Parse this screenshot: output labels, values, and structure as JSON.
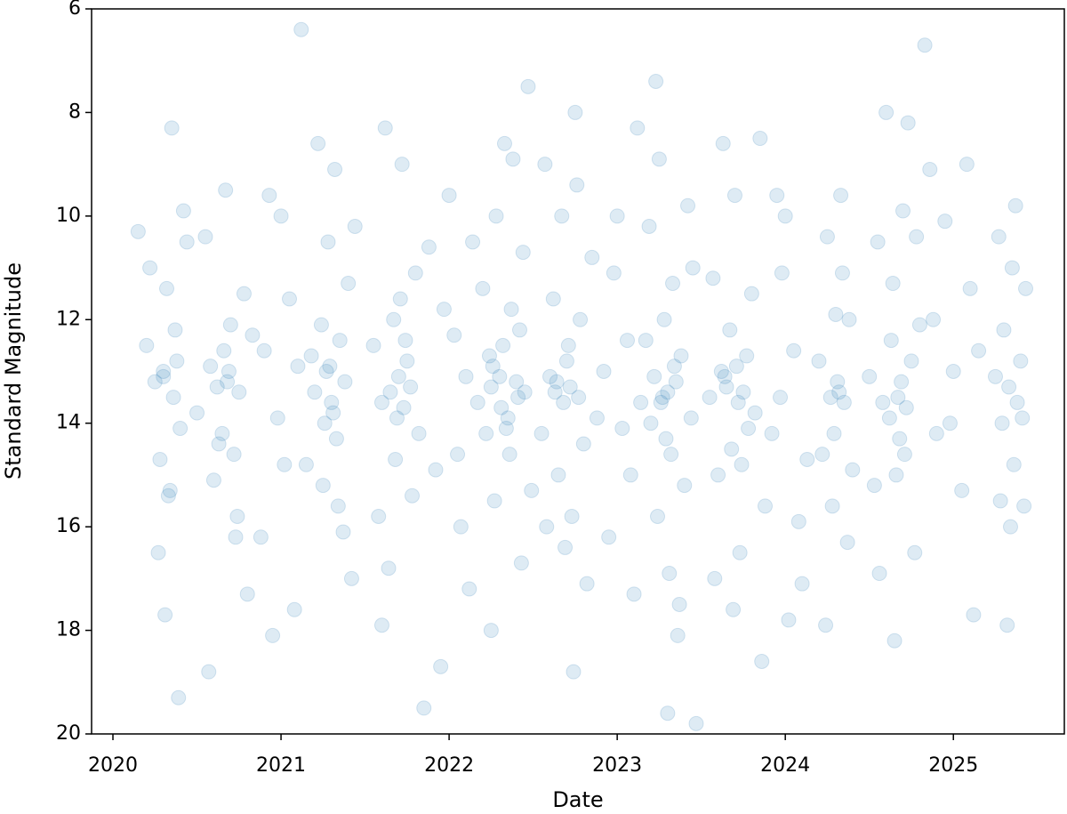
{
  "chart_data": {
    "type": "scatter",
    "x_label": "Date",
    "y_label": "Standard Magnitude",
    "color": "#1f77b4",
    "alpha": 0.15,
    "xlim": [
      2019.873,
      2025.66
    ],
    "xticks": [
      2020,
      2021,
      2022,
      2023,
      2024,
      2025
    ],
    "ylim": [
      20,
      6
    ],
    "yticks": [
      6,
      8,
      10,
      12,
      14,
      16,
      18,
      20
    ],
    "x": [
      2020.15,
      2020.2,
      2020.25,
      2020.28,
      2020.3,
      2020.32,
      2020.33,
      2020.35,
      2020.36,
      2020.38,
      2020.4,
      2020.42,
      2020.3,
      2020.34,
      2020.37,
      2020.27,
      2020.31,
      2020.39,
      2020.44,
      2020.22,
      2020.5,
      2020.55,
      2020.58,
      2020.6,
      2020.62,
      2020.65,
      2020.67,
      2020.68,
      2020.7,
      2020.72,
      2020.73,
      2020.75,
      2020.78,
      2020.8,
      2020.63,
      2020.66,
      2020.69,
      2020.74,
      2020.57,
      2020.83,
      2020.9,
      2020.95,
      2021.0,
      2021.02,
      2021.05,
      2020.88,
      2020.98,
      2021.08,
      2021.1,
      2020.93,
      2021.15,
      2021.18,
      2021.2,
      2021.22,
      2021.24,
      2021.25,
      2021.27,
      2021.28,
      2021.3,
      2021.32,
      2021.33,
      2021.35,
      2021.37,
      2021.38,
      2021.4,
      2021.42,
      2021.26,
      2021.29,
      2021.31,
      2021.34,
      2021.12,
      2021.44,
      2021.55,
      2021.58,
      2021.6,
      2021.62,
      2021.65,
      2021.67,
      2021.68,
      2021.7,
      2021.72,
      2021.73,
      2021.75,
      2021.78,
      2021.8,
      2021.82,
      2021.85,
      2021.64,
      2021.69,
      2021.71,
      2021.74,
      2021.6,
      2021.88,
      2021.77,
      2021.92,
      2021.95,
      2022.0,
      2022.03,
      2022.07,
      2022.1,
      2021.97,
      2022.05,
      2022.12,
      2022.14,
      2022.17,
      2022.2,
      2022.22,
      2022.24,
      2022.25,
      2022.27,
      2022.28,
      2022.3,
      2022.32,
      2022.33,
      2022.35,
      2022.36,
      2022.38,
      2022.4,
      2022.42,
      2022.43,
      2022.45,
      2022.47,
      2022.49,
      2022.26,
      2022.31,
      2022.34,
      2022.37,
      2022.41,
      2022.25,
      2022.44,
      2022.55,
      2022.57,
      2022.6,
      2022.62,
      2022.63,
      2022.65,
      2022.67,
      2022.68,
      2022.7,
      2022.72,
      2022.73,
      2022.75,
      2022.77,
      2022.78,
      2022.8,
      2022.82,
      2022.85,
      2022.88,
      2022.64,
      2022.69,
      2022.71,
      2022.74,
      2022.58,
      2022.76,
      2022.92,
      2022.95,
      2023.0,
      2023.03,
      2023.06,
      2023.1,
      2022.98,
      2023.08,
      2023.12,
      2023.14,
      2023.17,
      2023.19,
      2023.2,
      2023.22,
      2023.24,
      2023.25,
      2023.27,
      2023.28,
      2023.3,
      2023.31,
      2023.32,
      2023.33,
      2023.35,
      2023.37,
      2023.38,
      2023.4,
      2023.42,
      2023.44,
      2023.47,
      2023.26,
      2023.29,
      2023.34,
      2023.36,
      2023.23,
      2023.45,
      2023.3,
      2023.55,
      2023.57,
      2023.6,
      2023.62,
      2023.63,
      2023.65,
      2023.67,
      2023.68,
      2023.7,
      2023.72,
      2023.73,
      2023.75,
      2023.77,
      2023.78,
      2023.8,
      2023.82,
      2023.85,
      2023.88,
      2023.64,
      2023.69,
      2023.71,
      2023.74,
      2023.58,
      2023.86,
      2023.92,
      2023.95,
      2024.0,
      2024.02,
      2024.05,
      2024.08,
      2023.98,
      2024.1,
      2024.13,
      2023.97,
      2024.2,
      2024.22,
      2024.25,
      2024.27,
      2024.28,
      2024.3,
      2024.32,
      2024.33,
      2024.35,
      2024.37,
      2024.38,
      2024.24,
      2024.29,
      2024.34,
      2024.31,
      2024.4,
      2024.5,
      2024.53,
      2024.55,
      2024.58,
      2024.6,
      2024.62,
      2024.63,
      2024.65,
      2024.67,
      2024.68,
      2024.7,
      2024.72,
      2024.73,
      2024.75,
      2024.77,
      2024.78,
      2024.64,
      2024.66,
      2024.69,
      2024.71,
      2024.56,
      2024.8,
      2024.83,
      2024.86,
      2024.88,
      2024.9,
      2024.95,
      2025.0,
      2025.05,
      2025.08,
      2025.1,
      2025.12,
      2025.15,
      2024.98,
      2025.25,
      2025.27,
      2025.28,
      2025.3,
      2025.32,
      2025.33,
      2025.35,
      2025.36,
      2025.38,
      2025.4,
      2025.42,
      2025.43,
      2025.29,
      2025.34,
      2025.37,
      2025.41
    ],
    "values": [
      10.3,
      12.5,
      13.2,
      14.7,
      13.0,
      11.4,
      15.4,
      8.3,
      13.5,
      12.8,
      14.1,
      9.9,
      13.1,
      15.3,
      12.2,
      16.5,
      17.7,
      19.3,
      10.5,
      11.0,
      13.8,
      10.4,
      12.9,
      15.1,
      13.3,
      14.2,
      9.5,
      13.2,
      12.1,
      14.6,
      16.2,
      13.4,
      11.5,
      17.3,
      14.4,
      12.6,
      13.0,
      15.8,
      18.8,
      12.3,
      12.6,
      18.1,
      10.0,
      14.8,
      11.6,
      16.2,
      13.9,
      17.6,
      12.9,
      9.6,
      14.8,
      12.7,
      13.4,
      8.6,
      12.1,
      15.2,
      13.0,
      10.5,
      13.6,
      9.1,
      14.3,
      12.4,
      16.1,
      13.2,
      11.3,
      17.0,
      14.0,
      12.9,
      13.8,
      15.6,
      6.4,
      10.2,
      12.5,
      15.8,
      13.6,
      8.3,
      13.4,
      12.0,
      14.7,
      13.1,
      9.0,
      13.7,
      12.8,
      15.4,
      11.1,
      14.2,
      19.5,
      16.8,
      13.9,
      11.6,
      12.4,
      17.9,
      10.6,
      13.3,
      14.9,
      18.7,
      9.6,
      12.3,
      16.0,
      13.1,
      11.8,
      14.6,
      17.2,
      10.5,
      13.6,
      11.4,
      14.2,
      12.7,
      13.3,
      15.5,
      10.0,
      13.1,
      12.5,
      8.6,
      13.9,
      14.6,
      8.9,
      13.2,
      12.2,
      16.7,
      13.4,
      7.5,
      15.3,
      12.9,
      13.7,
      14.1,
      11.8,
      13.5,
      18.0,
      10.7,
      14.2,
      9.0,
      13.1,
      11.6,
      13.4,
      15.0,
      10.0,
      13.6,
      12.8,
      13.3,
      15.8,
      8.0,
      13.5,
      12.0,
      14.4,
      17.1,
      10.8,
      13.9,
      13.2,
      16.4,
      12.5,
      18.8,
      16.0,
      9.4,
      13.0,
      16.2,
      10.0,
      14.1,
      12.4,
      17.3,
      11.1,
      15.0,
      8.3,
      13.6,
      12.4,
      10.2,
      14.0,
      13.1,
      15.8,
      8.9,
      13.5,
      12.0,
      13.4,
      16.9,
      14.6,
      11.3,
      13.2,
      17.5,
      12.7,
      15.2,
      9.8,
      13.9,
      19.8,
      13.6,
      14.3,
      12.9,
      18.1,
      7.4,
      11.0,
      19.6,
      13.5,
      11.2,
      15.0,
      13.0,
      8.6,
      13.3,
      12.2,
      14.5,
      9.6,
      13.6,
      16.5,
      13.4,
      12.7,
      14.1,
      11.5,
      13.8,
      8.5,
      15.6,
      13.1,
      17.6,
      12.9,
      14.8,
      17.0,
      18.6,
      14.2,
      9.6,
      10.0,
      17.8,
      12.6,
      15.9,
      11.1,
      17.1,
      14.7,
      13.5,
      12.8,
      14.6,
      10.4,
      13.5,
      15.6,
      11.9,
      13.4,
      9.6,
      13.6,
      16.3,
      12.0,
      17.9,
      14.2,
      11.1,
      13.2,
      14.9,
      13.1,
      15.2,
      10.5,
      13.6,
      8.0,
      13.9,
      12.4,
      18.2,
      13.5,
      14.3,
      9.9,
      13.7,
      8.2,
      12.8,
      16.5,
      10.4,
      11.3,
      15.0,
      13.2,
      14.6,
      16.9,
      12.1,
      6.7,
      9.1,
      12.0,
      14.2,
      10.1,
      13.0,
      15.3,
      9.0,
      11.4,
      17.7,
      12.6,
      14.0,
      13.1,
      10.4,
      15.5,
      12.2,
      17.9,
      13.3,
      11.0,
      14.8,
      13.6,
      12.8,
      15.6,
      11.4,
      14.0,
      16.0,
      9.8,
      13.9
    ]
  }
}
